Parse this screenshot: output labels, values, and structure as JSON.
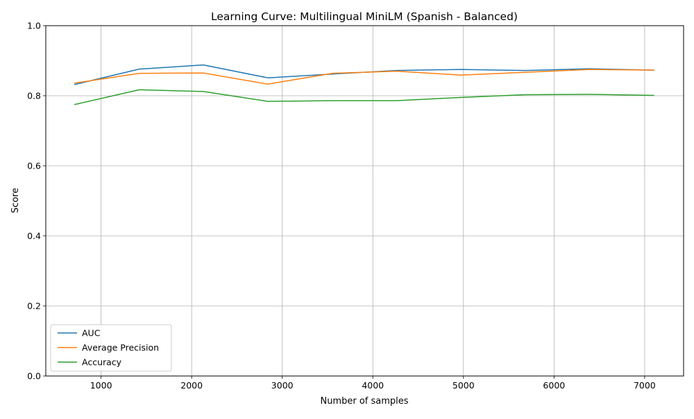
{
  "chart_data": {
    "type": "line",
    "title": "Learning Curve: Multilingual MiniLM (Spanish - Balanced)",
    "xlabel": "Number of samples",
    "ylabel": "Score",
    "xlim": [
      390,
      7430
    ],
    "ylim": [
      0.0,
      1.0
    ],
    "xticks": [
      1000,
      2000,
      3000,
      4000,
      5000,
      6000,
      7000
    ],
    "yticks": [
      0.0,
      0.2,
      0.4,
      0.6,
      0.8,
      1.0
    ],
    "xtick_labels": [
      "1000",
      "2000",
      "3000",
      "4000",
      "5000",
      "6000",
      "7000"
    ],
    "ytick_labels": [
      "0.0",
      "0.2",
      "0.4",
      "0.6",
      "0.8",
      "1.0"
    ],
    "grid": true,
    "legend_position": "lower-left",
    "x": [
      710,
      1420,
      2130,
      2840,
      3550,
      4260,
      4970,
      5680,
      6390,
      7100
    ],
    "series": [
      {
        "name": "AUC",
        "color": "#1f77b4",
        "values": [
          0.832,
          0.876,
          0.888,
          0.851,
          0.862,
          0.872,
          0.875,
          0.872,
          0.877,
          0.873
        ]
      },
      {
        "name": "Average Precision",
        "color": "#ff7f0e",
        "values": [
          0.836,
          0.864,
          0.865,
          0.833,
          0.864,
          0.87,
          0.859,
          0.867,
          0.875,
          0.873
        ]
      },
      {
        "name": "Accuracy",
        "color": "#2ca02c",
        "values": [
          0.775,
          0.817,
          0.812,
          0.784,
          0.786,
          0.786,
          0.795,
          0.803,
          0.804,
          0.801
        ]
      }
    ]
  }
}
